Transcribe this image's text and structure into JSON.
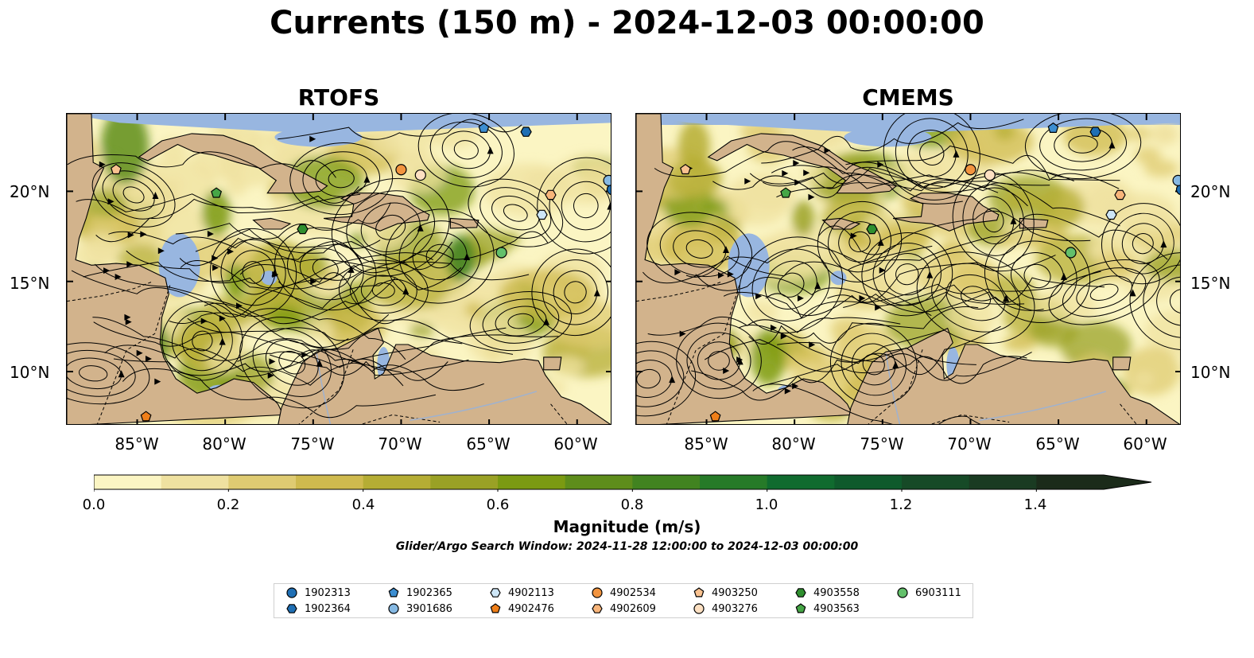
{
  "title": "Currents (150 m) - 2024-12-03 00:00:00",
  "panels": [
    {
      "title": "RTOFS",
      "model": "RTOFS"
    },
    {
      "title": "CMEMS",
      "model": "CMEMS"
    }
  ],
  "axes": {
    "x_ticks": [
      "85°W",
      "80°W",
      "75°W",
      "70°W",
      "65°W",
      "60°W"
    ],
    "y_ticks": [
      "20°N",
      "15°N",
      "10°N"
    ],
    "lon_range": [
      -89.0,
      -58.0
    ],
    "lat_range": [
      7.0,
      24.3
    ]
  },
  "colorbar": {
    "label": "Magnitude (m/s)",
    "ticks": [
      "0.0",
      "0.2",
      "0.4",
      "0.6",
      "0.8",
      "1.0",
      "1.2",
      "1.4"
    ],
    "range": [
      0.0,
      1.5
    ],
    "extend": "max",
    "colors": [
      "#fbf5c3",
      "#efe1a0",
      "#dfcb72",
      "#cfba4e",
      "#b5ad34",
      "#9aa125",
      "#7b9a12",
      "#5e8d1b",
      "#418320",
      "#267a28",
      "#106b2f",
      "#0f5a2c",
      "#164a27",
      "#1a3b22",
      "#1b2b1a"
    ]
  },
  "search_window": "Glider/Argo Search Window: 2024-11-28 12:00:00 to 2024-12-03 00:00:00",
  "colors": {
    "ocean": "#98b6e0",
    "land": "#d2b38c",
    "coast": "#000000"
  },
  "legend": [
    {
      "id": "1902313",
      "marker": "circle",
      "color": "#1f6fb4"
    },
    {
      "id": "1902364",
      "marker": "hexagon",
      "color": "#1f6fb4"
    },
    {
      "id": "1902365",
      "marker": "pentagon",
      "color": "#3c8ed1"
    },
    {
      "id": "3901686",
      "marker": "circle",
      "color": "#86b9e3"
    },
    {
      "id": "4902113",
      "marker": "hexagon",
      "color": "#cde6f7"
    },
    {
      "id": "4902476",
      "marker": "pentagon",
      "color": "#f07f19"
    },
    {
      "id": "4902534",
      "marker": "circle",
      "color": "#f2943f"
    },
    {
      "id": "4902609",
      "marker": "hexagon",
      "color": "#f8b57a"
    },
    {
      "id": "4903250",
      "marker": "pentagon",
      "color": "#f9c290"
    },
    {
      "id": "4903276",
      "marker": "circle",
      "color": "#fde0c2"
    },
    {
      "id": "4903558",
      "marker": "hexagon",
      "color": "#2f8f2f"
    },
    {
      "id": "4903563",
      "marker": "pentagon",
      "color": "#46a646"
    },
    {
      "id": "6903111",
      "marker": "circle",
      "color": "#63c06b"
    }
  ],
  "floats": [
    {
      "id": "1902313",
      "lon": -58.0,
      "lat": 20.1
    },
    {
      "id": "1902364",
      "lon": -62.9,
      "lat": 23.3
    },
    {
      "id": "1902365",
      "lon": -65.3,
      "lat": 23.5
    },
    {
      "id": "3901686",
      "lon": -58.2,
      "lat": 20.6
    },
    {
      "id": "4902113",
      "lon": -62.0,
      "lat": 18.7
    },
    {
      "id": "4902476",
      "lon": -84.5,
      "lat": 7.5
    },
    {
      "id": "4902534",
      "lon": -70.0,
      "lat": 21.2
    },
    {
      "id": "4902609",
      "lon": -61.5,
      "lat": 19.8
    },
    {
      "id": "4903250",
      "lon": -86.2,
      "lat": 21.2
    },
    {
      "id": "4903276",
      "lon": -68.9,
      "lat": 20.9
    },
    {
      "id": "4903558",
      "lon": -75.6,
      "lat": 17.9
    },
    {
      "id": "4903563",
      "lon": -80.5,
      "lat": 19.9
    },
    {
      "id": "6903111",
      "lon": -64.3,
      "lat": 16.6
    }
  ]
}
